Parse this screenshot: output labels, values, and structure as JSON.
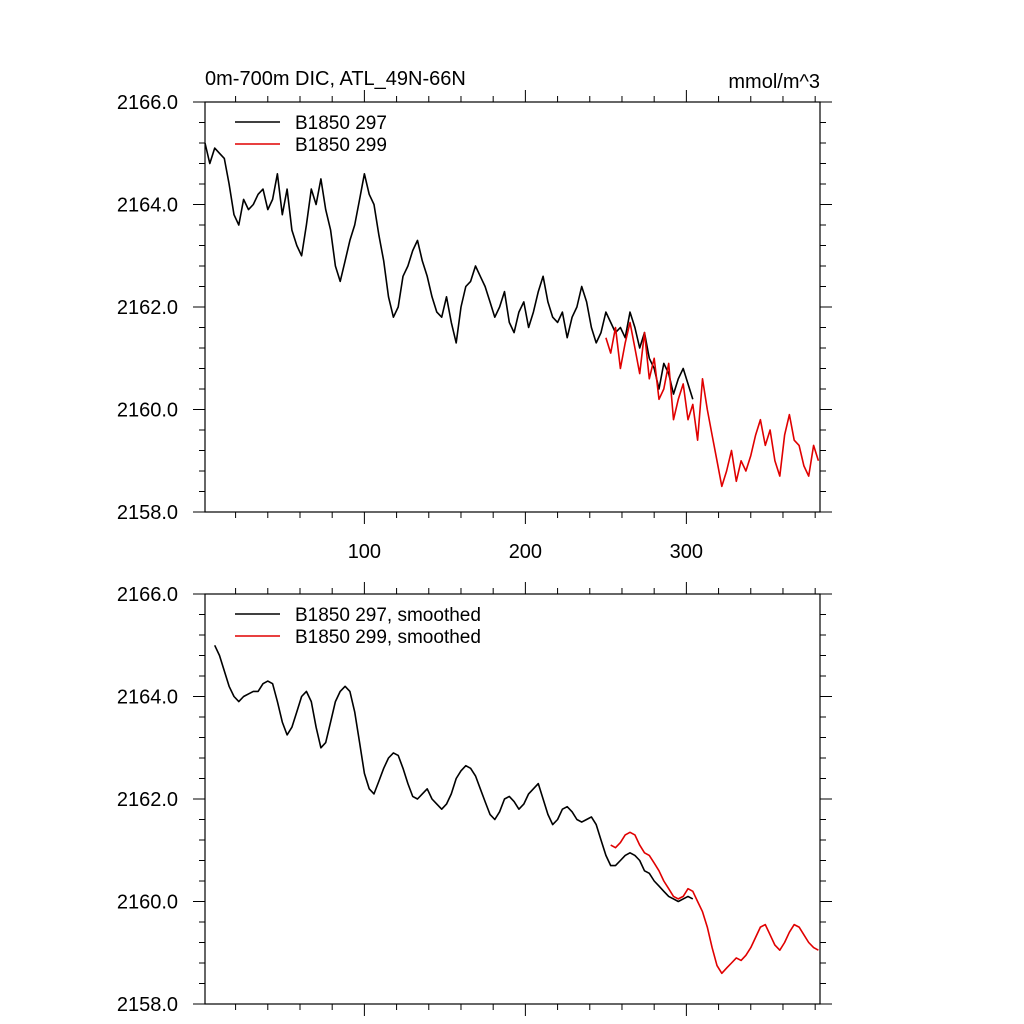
{
  "header": {
    "title": "0m-700m DIC, ATL_49N-66N",
    "units": "mmol/m^3"
  },
  "colors": {
    "series_297": "#000000",
    "series_299": "#e00000"
  },
  "chart_data": [
    {
      "type": "line",
      "title": "0m-700m DIC, ATL_49N-66N",
      "ylabel_right": "mmol/m^3",
      "xlim": [
        1,
        383
      ],
      "ylim": [
        2158.0,
        2166.0
      ],
      "x_ticks": [
        100,
        200,
        300
      ],
      "x_tick_labels": [
        "100",
        "200",
        "300"
      ],
      "y_ticks": [
        2158,
        2160,
        2162,
        2164,
        2166
      ],
      "y_tick_labels": [
        "2158.0",
        "2160.0",
        "2162.0",
        "2164.0",
        "2166.0"
      ],
      "legend_position": "top-left",
      "series": [
        {
          "name": "B1850 297",
          "color": "#000000",
          "x": [
            1,
            4,
            7,
            10,
            13,
            16,
            19,
            22,
            25,
            28,
            31,
            34,
            37,
            40,
            43,
            46,
            49,
            52,
            55,
            58,
            61,
            64,
            67,
            70,
            73,
            76,
            79,
            82,
            85,
            88,
            91,
            94,
            97,
            100,
            103,
            106,
            109,
            112,
            115,
            118,
            121,
            124,
            127,
            130,
            133,
            136,
            139,
            142,
            145,
            148,
            151,
            154,
            157,
            160,
            163,
            166,
            169,
            172,
            175,
            178,
            181,
            184,
            187,
            190,
            193,
            196,
            199,
            202,
            205,
            208,
            211,
            214,
            217,
            220,
            223,
            226,
            229,
            232,
            235,
            238,
            241,
            244,
            247,
            250,
            253,
            256,
            259,
            262,
            265,
            268,
            271,
            274,
            277,
            280,
            283,
            286,
            289,
            292,
            295,
            298,
            301,
            304
          ],
          "values": [
            2165.2,
            2164.8,
            2165.1,
            2165.0,
            2164.9,
            2164.4,
            2163.8,
            2163.6,
            2164.1,
            2163.9,
            2164.0,
            2164.2,
            2164.3,
            2163.9,
            2164.1,
            2164.6,
            2163.8,
            2164.3,
            2163.5,
            2163.2,
            2163.0,
            2163.6,
            2164.3,
            2164.0,
            2164.5,
            2163.9,
            2163.5,
            2162.8,
            2162.5,
            2162.9,
            2163.3,
            2163.6,
            2164.1,
            2164.6,
            2164.2,
            2164.0,
            2163.4,
            2162.9,
            2162.2,
            2161.8,
            2162.0,
            2162.6,
            2162.8,
            2163.1,
            2163.3,
            2162.9,
            2162.6,
            2162.2,
            2161.9,
            2161.8,
            2162.2,
            2161.7,
            2161.3,
            2162.0,
            2162.4,
            2162.5,
            2162.8,
            2162.6,
            2162.4,
            2162.1,
            2161.8,
            2162.0,
            2162.3,
            2161.7,
            2161.5,
            2161.9,
            2162.1,
            2161.6,
            2161.9,
            2162.3,
            2162.6,
            2162.1,
            2161.8,
            2161.7,
            2161.9,
            2161.4,
            2161.8,
            2162.0,
            2162.4,
            2162.1,
            2161.6,
            2161.3,
            2161.5,
            2161.9,
            2161.7,
            2161.5,
            2161.6,
            2161.4,
            2161.9,
            2161.6,
            2161.2,
            2161.5,
            2161.0,
            2160.8,
            2160.4,
            2160.9,
            2160.7,
            2160.3,
            2160.6,
            2160.8,
            2160.5,
            2160.2
          ]
        },
        {
          "name": "B1850 299",
          "color": "#e00000",
          "x": [
            250,
            253,
            256,
            259,
            262,
            265,
            268,
            271,
            274,
            277,
            280,
            283,
            286,
            289,
            292,
            295,
            298,
            301,
            304,
            307,
            310,
            313,
            316,
            319,
            322,
            325,
            328,
            331,
            334,
            337,
            340,
            343,
            346,
            349,
            352,
            355,
            358,
            361,
            364,
            367,
            370,
            373,
            376,
            379,
            382
          ],
          "values": [
            2161.4,
            2161.1,
            2161.6,
            2160.8,
            2161.3,
            2161.7,
            2161.2,
            2160.7,
            2161.5,
            2160.6,
            2161.0,
            2160.2,
            2160.4,
            2160.9,
            2159.8,
            2160.2,
            2160.5,
            2159.8,
            2160.1,
            2159.4,
            2160.6,
            2160.0,
            2159.5,
            2159.0,
            2158.5,
            2158.8,
            2159.2,
            2158.6,
            2159.0,
            2158.8,
            2159.1,
            2159.5,
            2159.8,
            2159.3,
            2159.6,
            2159.0,
            2158.7,
            2159.5,
            2159.9,
            2159.4,
            2159.3,
            2158.9,
            2158.7,
            2159.3,
            2159.0
          ]
        }
      ]
    },
    {
      "type": "line",
      "xlim": [
        1,
        383
      ],
      "ylim": [
        2158.0,
        2166.0
      ],
      "x_ticks": [
        100,
        200,
        300
      ],
      "x_tick_labels": [],
      "y_ticks": [
        2158,
        2160,
        2162,
        2164,
        2166
      ],
      "y_tick_labels": [
        "2158.0",
        "2160.0",
        "2162.0",
        "2164.0",
        "2166.0"
      ],
      "legend_position": "top-left",
      "series": [
        {
          "name": "B1850 297, smoothed",
          "color": "#000000",
          "x": [
            7,
            10,
            13,
            16,
            19,
            22,
            25,
            28,
            31,
            34,
            37,
            40,
            43,
            46,
            49,
            52,
            55,
            58,
            61,
            64,
            67,
            70,
            73,
            76,
            79,
            82,
            85,
            88,
            91,
            94,
            97,
            100,
            103,
            106,
            109,
            112,
            115,
            118,
            121,
            124,
            127,
            130,
            133,
            136,
            139,
            142,
            145,
            148,
            151,
            154,
            157,
            160,
            163,
            166,
            169,
            172,
            175,
            178,
            181,
            184,
            187,
            190,
            193,
            196,
            199,
            202,
            205,
            208,
            211,
            214,
            217,
            220,
            223,
            226,
            229,
            232,
            235,
            238,
            241,
            244,
            247,
            250,
            253,
            256,
            259,
            262,
            265,
            268,
            271,
            274,
            277,
            280,
            283,
            286,
            289,
            292,
            295,
            298,
            301,
            304
          ],
          "values": [
            2165.0,
            2164.8,
            2164.5,
            2164.2,
            2164.0,
            2163.9,
            2164.0,
            2164.05,
            2164.1,
            2164.1,
            2164.25,
            2164.3,
            2164.25,
            2163.9,
            2163.5,
            2163.25,
            2163.4,
            2163.7,
            2164.0,
            2164.1,
            2163.9,
            2163.4,
            2163.0,
            2163.1,
            2163.5,
            2163.9,
            2164.1,
            2164.2,
            2164.1,
            2163.7,
            2163.1,
            2162.5,
            2162.2,
            2162.1,
            2162.35,
            2162.6,
            2162.8,
            2162.9,
            2162.85,
            2162.6,
            2162.3,
            2162.05,
            2162.0,
            2162.1,
            2162.2,
            2162.0,
            2161.9,
            2161.8,
            2161.9,
            2162.1,
            2162.4,
            2162.55,
            2162.65,
            2162.6,
            2162.45,
            2162.2,
            2161.95,
            2161.7,
            2161.6,
            2161.75,
            2162.0,
            2162.05,
            2161.95,
            2161.8,
            2161.9,
            2162.1,
            2162.2,
            2162.3,
            2162.0,
            2161.7,
            2161.5,
            2161.6,
            2161.8,
            2161.85,
            2161.75,
            2161.6,
            2161.55,
            2161.6,
            2161.65,
            2161.5,
            2161.2,
            2160.9,
            2160.7,
            2160.7,
            2160.8,
            2160.9,
            2160.95,
            2160.9,
            2160.8,
            2160.6,
            2160.55,
            2160.4,
            2160.3,
            2160.2,
            2160.1,
            2160.05,
            2160.0,
            2160.05,
            2160.1,
            2160.05
          ]
        },
        {
          "name": "B1850 299, smoothed",
          "color": "#e00000",
          "x": [
            253,
            256,
            259,
            262,
            265,
            268,
            271,
            274,
            277,
            280,
            283,
            286,
            289,
            292,
            295,
            298,
            301,
            304,
            307,
            310,
            313,
            316,
            319,
            322,
            325,
            328,
            331,
            334,
            337,
            340,
            343,
            346,
            349,
            352,
            355,
            358,
            361,
            364,
            367,
            370,
            373,
            376,
            379,
            382
          ],
          "values": [
            2161.1,
            2161.05,
            2161.15,
            2161.3,
            2161.35,
            2161.3,
            2161.1,
            2160.95,
            2160.9,
            2160.75,
            2160.6,
            2160.4,
            2160.25,
            2160.1,
            2160.05,
            2160.1,
            2160.25,
            2160.2,
            2160.0,
            2159.8,
            2159.5,
            2159.1,
            2158.75,
            2158.6,
            2158.7,
            2158.8,
            2158.9,
            2158.85,
            2158.95,
            2159.1,
            2159.3,
            2159.5,
            2159.55,
            2159.35,
            2159.15,
            2159.05,
            2159.2,
            2159.4,
            2159.55,
            2159.5,
            2159.35,
            2159.2,
            2159.1,
            2159.05
          ]
        }
      ]
    }
  ]
}
